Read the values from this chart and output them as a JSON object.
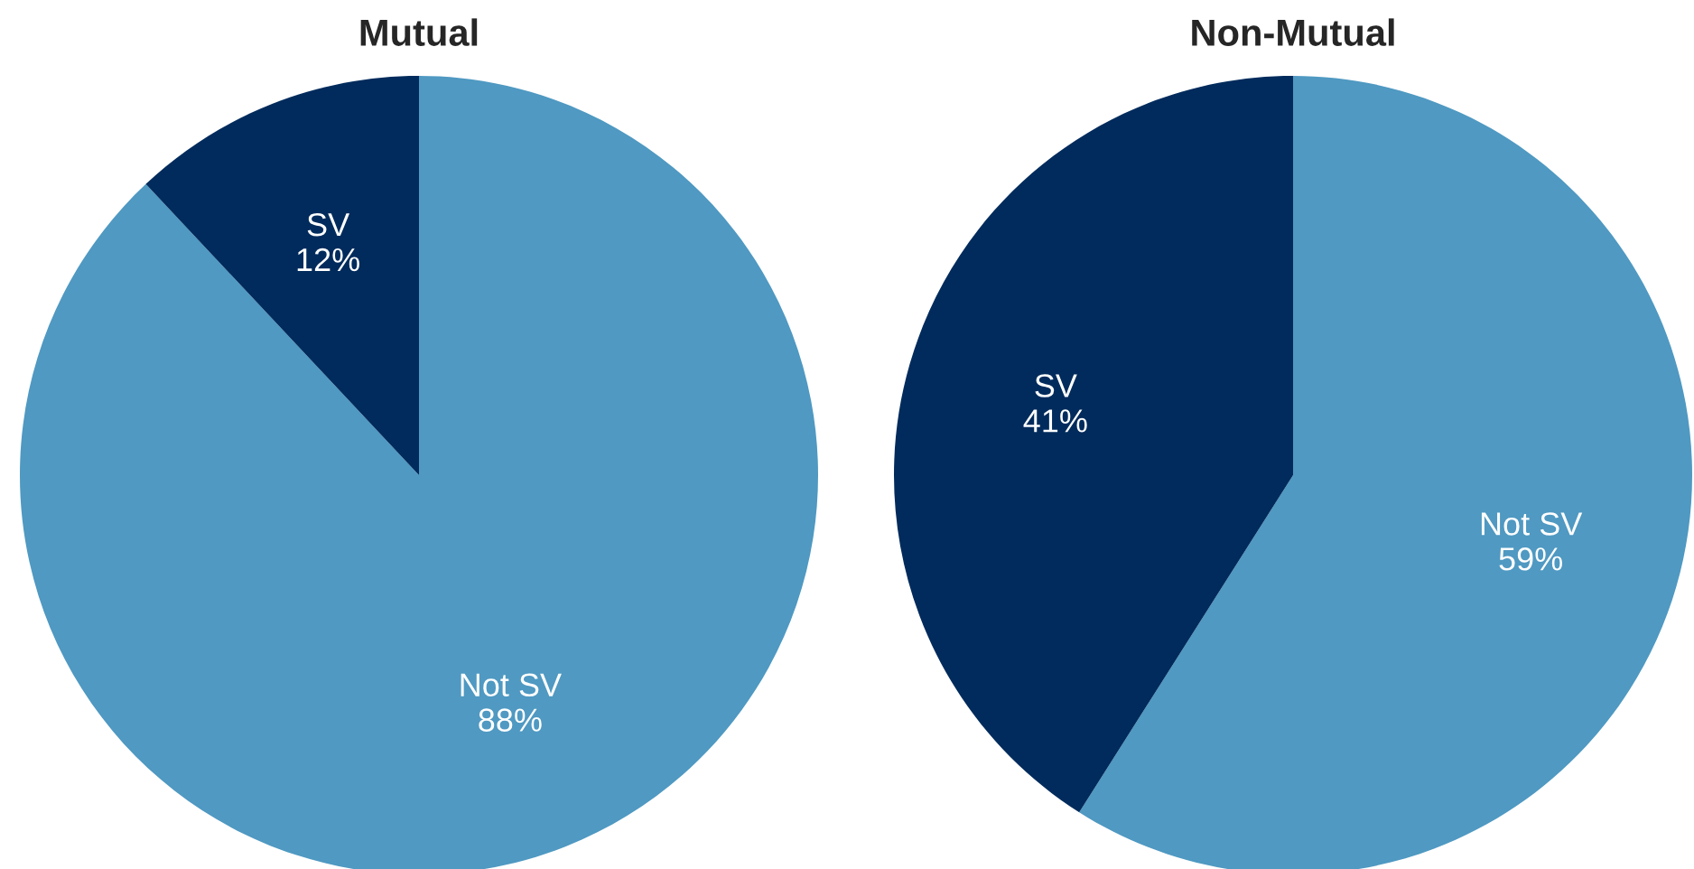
{
  "chart_data": [
    {
      "type": "pie",
      "title": "Mutual",
      "categories": [
        "Not SV",
        "SV"
      ],
      "values": [
        88,
        12
      ],
      "value_labels": [
        "88%",
        "12%"
      ],
      "colors": [
        "#4f99c2",
        "#002b5c"
      ],
      "legend": false
    },
    {
      "type": "pie",
      "title": "Non-Mutual",
      "categories": [
        "Not SV",
        "SV"
      ],
      "values": [
        59,
        41
      ],
      "value_labels": [
        "59%",
        "41%"
      ],
      "colors": [
        "#4f99c2",
        "#002b5c"
      ],
      "legend": false
    }
  ]
}
